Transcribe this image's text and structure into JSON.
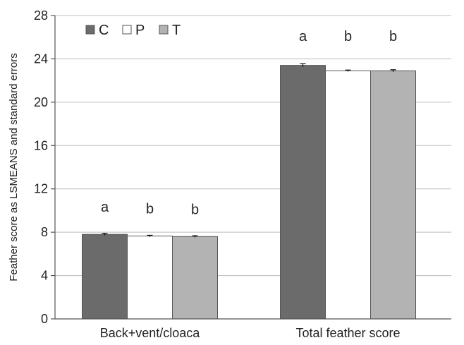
{
  "chart_data": {
    "type": "bar",
    "ylabel": "Feather score as LSMEANS and standard errors",
    "xlabel": "",
    "ylim": [
      0,
      28
    ],
    "yticks": [
      0,
      4,
      8,
      12,
      16,
      20,
      24,
      28
    ],
    "ytick_labels": [
      "0",
      "4",
      "8",
      "12",
      "16",
      "20",
      "24",
      "28"
    ],
    "grid": true,
    "legend_position": "top-left",
    "categories": [
      "Back+vent/cloaca",
      "Total feather score"
    ],
    "series": [
      {
        "name": "C",
        "color": "#6b6b6b",
        "values": [
          7.8,
          23.4
        ],
        "errors": [
          0.1,
          0.15
        ],
        "letters": [
          "a",
          "a"
        ]
      },
      {
        "name": "P",
        "color": "#ffffff",
        "values": [
          7.65,
          22.9
        ],
        "errors": [
          0.07,
          0.07
        ],
        "letters": [
          "b",
          "b"
        ]
      },
      {
        "name": "T",
        "color": "#b3b3b3",
        "values": [
          7.6,
          22.9
        ],
        "errors": [
          0.08,
          0.1
        ],
        "letters": [
          "b",
          "b"
        ]
      }
    ]
  }
}
